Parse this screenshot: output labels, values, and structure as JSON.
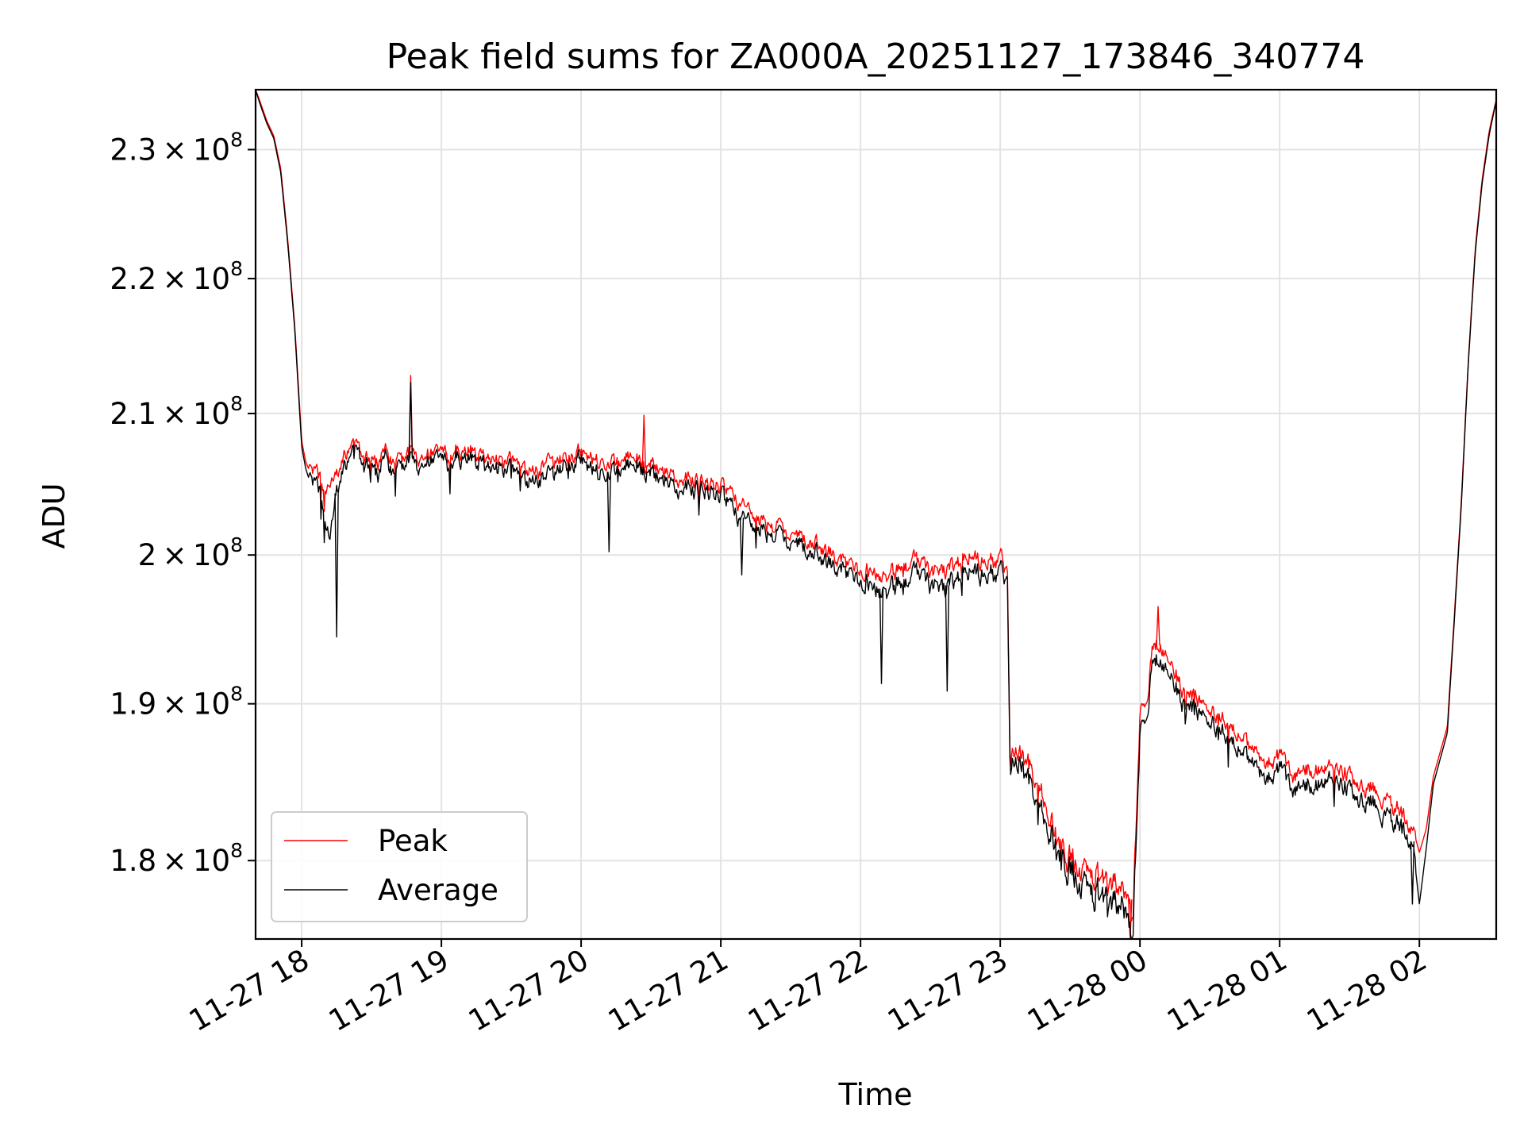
{
  "chart_data": {
    "type": "line",
    "title": "Peak field sums for ZA000A_20251127_173846_340774",
    "xlabel": "Time",
    "ylabel": "ADU",
    "yscale": "log",
    "xlim": [
      -0.33,
      8.55
    ],
    "ylim": [
      175200000,
      234800000
    ],
    "grid": true,
    "legend_position": "lower-left",
    "x_unit": "hours since 11-27 18:00",
    "x_ticks": [
      {
        "value": 0,
        "label": "11-27 18"
      },
      {
        "value": 1,
        "label": "11-27 19"
      },
      {
        "value": 2,
        "label": "11-27 20"
      },
      {
        "value": 3,
        "label": "11-27 21"
      },
      {
        "value": 4,
        "label": "11-27 22"
      },
      {
        "value": 5,
        "label": "11-27 23"
      },
      {
        "value": 6,
        "label": "11-28 00"
      },
      {
        "value": 7,
        "label": "11-28 01"
      },
      {
        "value": 8,
        "label": "11-28 02"
      }
    ],
    "y_ticks": [
      {
        "value": 180000000,
        "mantissa": "1.8",
        "exponent": "8"
      },
      {
        "value": 190000000,
        "mantissa": "1.9",
        "exponent": "8"
      },
      {
        "value": 200000000,
        "mantissa": "2",
        "exponent": "8"
      },
      {
        "value": 210000000,
        "mantissa": "2.1",
        "exponent": "8"
      },
      {
        "value": 220000000,
        "mantissa": "2.2",
        "exponent": "8"
      },
      {
        "value": 230000000,
        "mantissa": "2.3",
        "exponent": "8"
      }
    ],
    "series": [
      {
        "name": "Peak",
        "color": "#ff0000",
        "x": [
          -0.33,
          -0.3,
          -0.25,
          -0.2,
          -0.15,
          -0.1,
          -0.05,
          0.0,
          0.03,
          0.06,
          0.1,
          0.15,
          0.2,
          0.25,
          0.3,
          0.35,
          0.4,
          0.45,
          0.5,
          0.55,
          0.6,
          0.65,
          0.7,
          0.75,
          0.78,
          0.8,
          0.85,
          0.9,
          0.95,
          1.0,
          1.1,
          1.2,
          1.3,
          1.4,
          1.5,
          1.6,
          1.7,
          1.75,
          1.8,
          1.9,
          2.0,
          2.1,
          2.2,
          2.3,
          2.4,
          2.45,
          2.5,
          2.6,
          2.7,
          2.8,
          2.9,
          3.0,
          3.05,
          3.1,
          3.2,
          3.3,
          3.4,
          3.5,
          3.6,
          3.7,
          3.8,
          3.9,
          4.0,
          4.1,
          4.2,
          4.25,
          4.3,
          4.4,
          4.5,
          4.6,
          4.7,
          4.8,
          4.9,
          5.0,
          5.05,
          5.07,
          5.1,
          5.2,
          5.3,
          5.4,
          5.5,
          5.6,
          5.7,
          5.8,
          5.85,
          5.9,
          5.93,
          5.95,
          6.0,
          6.05,
          6.1,
          6.2,
          6.3,
          6.4,
          6.5,
          6.6,
          6.7,
          6.8,
          6.9,
          7.0,
          7.1,
          7.2,
          7.3,
          7.4,
          7.5,
          7.6,
          7.7,
          7.8,
          7.9,
          7.95,
          8.0,
          8.05,
          8.1,
          8.2,
          8.25,
          8.3,
          8.35,
          8.4,
          8.45,
          8.5,
          8.55
        ],
        "values": [
          234800000,
          233900000,
          232300000,
          231100000,
          228500000,
          223000000,
          216500000,
          208000000,
          206500000,
          205800000,
          206200000,
          205000000,
          204800000,
          205500000,
          206800000,
          207500000,
          207300000,
          207000000,
          206800000,
          206300000,
          207700000,
          206200000,
          206700000,
          206900000,
          207300000,
          207100000,
          206500000,
          206900000,
          207300000,
          206800000,
          207400000,
          207300000,
          206800000,
          206500000,
          206900000,
          206000000,
          205900000,
          206700000,
          206300000,
          206800000,
          207400000,
          206600000,
          206500000,
          206800000,
          207000000,
          206100000,
          206300000,
          205900000,
          205200000,
          205200000,
          205000000,
          204800000,
          204400000,
          203900000,
          203100000,
          202200000,
          201900000,
          201400000,
          201100000,
          200700000,
          200000000,
          199300000,
          199100000,
          198800000,
          198600000,
          198800000,
          199200000,
          199600000,
          199100000,
          198900000,
          199800000,
          199800000,
          199500000,
          199600000,
          199100000,
          186800000,
          186700000,
          186200000,
          184000000,
          181200000,
          180100000,
          179600000,
          179300000,
          178600000,
          178300000,
          178000000,
          177600000,
          176300000,
          189700000,
          190500000,
          194200000,
          193100000,
          190900000,
          190300000,
          189500000,
          188800000,
          188000000,
          187000000,
          186300000,
          186600000,
          185400000,
          185900000,
          185600000,
          185800000,
          185300000,
          184600000,
          184300000,
          183400000,
          182700000,
          182100000,
          180500000,
          182000000,
          185300000,
          188500000,
          195800000,
          203700000,
          213800000,
          222300000,
          227700000,
          231500000,
          234000000
        ],
        "spikes": [
          {
            "x": 0.78,
            "value": 212800000
          },
          {
            "x": 2.45,
            "value": 209900000
          },
          {
            "x": 5.93,
            "value": 175200000
          },
          {
            "x": 6.13,
            "value": 196500000
          }
        ]
      },
      {
        "name": "Average",
        "color": "#000000",
        "x": [
          -0.33,
          -0.3,
          -0.25,
          -0.2,
          -0.15,
          -0.1,
          -0.05,
          0.0,
          0.03,
          0.06,
          0.1,
          0.15,
          0.2,
          0.25,
          0.3,
          0.35,
          0.4,
          0.45,
          0.5,
          0.55,
          0.6,
          0.65,
          0.7,
          0.75,
          0.78,
          0.8,
          0.85,
          0.9,
          0.95,
          1.0,
          1.1,
          1.2,
          1.3,
          1.4,
          1.5,
          1.6,
          1.7,
          1.75,
          1.8,
          1.9,
          2.0,
          2.1,
          2.2,
          2.3,
          2.4,
          2.45,
          2.5,
          2.6,
          2.7,
          2.8,
          2.9,
          3.0,
          3.05,
          3.1,
          3.2,
          3.3,
          3.4,
          3.5,
          3.6,
          3.7,
          3.8,
          3.9,
          4.0,
          4.1,
          4.2,
          4.25,
          4.3,
          4.4,
          4.5,
          4.6,
          4.7,
          4.8,
          4.9,
          5.0,
          5.05,
          5.07,
          5.1,
          5.2,
          5.3,
          5.4,
          5.5,
          5.6,
          5.7,
          5.8,
          5.85,
          5.9,
          5.93,
          5.95,
          6.0,
          6.05,
          6.1,
          6.2,
          6.3,
          6.4,
          6.5,
          6.6,
          6.7,
          6.8,
          6.9,
          7.0,
          7.1,
          7.2,
          7.3,
          7.4,
          7.5,
          7.6,
          7.7,
          7.8,
          7.9,
          7.95,
          8.0,
          8.05,
          8.1,
          8.2,
          8.25,
          8.3,
          8.35,
          8.4,
          8.45,
          8.5,
          8.55
        ],
        "values": [
          234800000,
          233700000,
          232100000,
          230900000,
          228200000,
          222700000,
          216200000,
          207600000,
          206000000,
          205100000,
          205400000,
          203800000,
          201000000,
          204300000,
          206100000,
          206900000,
          206800000,
          206500000,
          206300000,
          205500000,
          207300000,
          205400000,
          206100000,
          206300000,
          206800000,
          206500000,
          205900000,
          206400000,
          206800000,
          206200000,
          206900000,
          206800000,
          206200000,
          205900000,
          206300000,
          205200000,
          205300000,
          205600000,
          205500000,
          206200000,
          206900000,
          205800000,
          205800000,
          206200000,
          206500000,
          205700000,
          205700000,
          205300000,
          204500000,
          204600000,
          204400000,
          204200000,
          203600000,
          202900000,
          202300000,
          201500000,
          201300000,
          200800000,
          200500000,
          200000000,
          199300000,
          198600000,
          198400000,
          197800000,
          197600000,
          197900000,
          198100000,
          198800000,
          198200000,
          197700000,
          198800000,
          198900000,
          198600000,
          198700000,
          198400000,
          186200000,
          186000000,
          185300000,
          182900000,
          180400000,
          179300000,
          178700000,
          178200000,
          177500000,
          177200000,
          177000000,
          176100000,
          175200000,
          188600000,
          189500000,
          193200000,
          192200000,
          190100000,
          189500000,
          188700000,
          187900000,
          187100000,
          186100000,
          185400000,
          185700000,
          184500000,
          184900000,
          184700000,
          184900000,
          184400000,
          183700000,
          183400000,
          182400000,
          181800000,
          181200000,
          177300000,
          180800000,
          184800000,
          188100000,
          195500000,
          203400000,
          213600000,
          222000000,
          227400000,
          231200000,
          233900000
        ],
        "spikes": [
          {
            "x": 0.25,
            "value": 194400000
          },
          {
            "x": 0.78,
            "value": 212300000
          },
          {
            "x": 2.2,
            "value": 200200000
          },
          {
            "x": 3.15,
            "value": 198600000
          },
          {
            "x": 4.15,
            "value": 191300000
          },
          {
            "x": 4.62,
            "value": 190800000
          },
          {
            "x": 7.95,
            "value": 177300000
          }
        ]
      }
    ]
  }
}
